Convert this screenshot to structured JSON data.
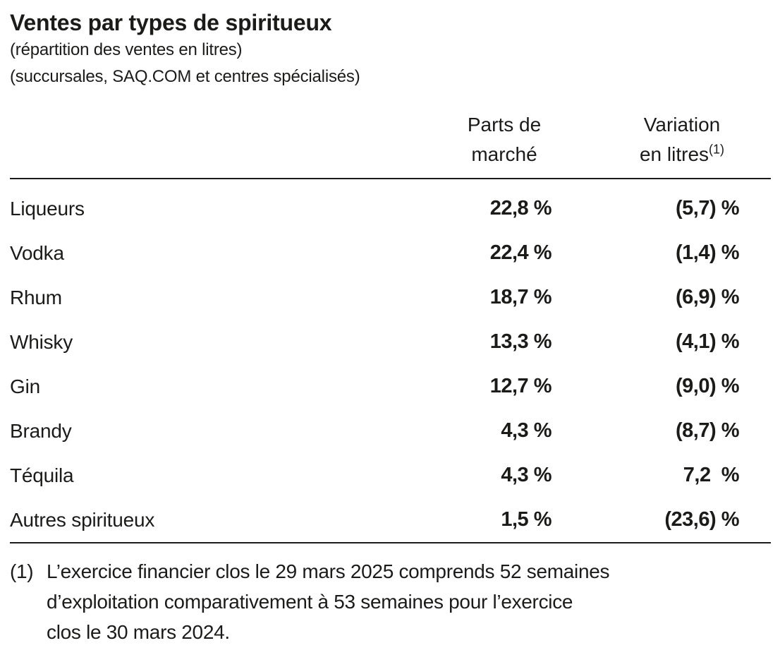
{
  "header": {
    "title": "Ventes par types de spiritueux",
    "subtitle1": "(répartition des ventes en litres)",
    "subtitle2": "(succursales, SAQ.COM et centres spécialisés)"
  },
  "table": {
    "columns": [
      {
        "line1": "Parts de",
        "line2": "marché",
        "sup": ""
      },
      {
        "line1": "Variation",
        "line2": "en litres",
        "sup": "(1)"
      }
    ],
    "rows": [
      {
        "label": "Liqueurs",
        "parts": "22,8 %",
        "variation": "(5,7) %"
      },
      {
        "label": "Vodka",
        "parts": "22,4 %",
        "variation": "(1,4) %"
      },
      {
        "label": "Rhum",
        "parts": "18,7 %",
        "variation": "(6,9) %"
      },
      {
        "label": "Whisky",
        "parts": "13,3 %",
        "variation": "(4,1) %"
      },
      {
        "label": "Gin",
        "parts": "12,7 %",
        "variation": "(9,0) %"
      },
      {
        "label": "Brandy",
        "parts": "4,3 %",
        "variation": "(8,7) %"
      },
      {
        "label": "Téquila",
        "parts": "4,3 %",
        "variation": "7,2  %"
      },
      {
        "label": "Autres spiritueux",
        "parts": "1,5 %",
        "variation": "(23,6) %"
      }
    ]
  },
  "footnote": {
    "marker": "(1)",
    "text": "L’exercice financier clos le 29 mars 2025 comprends 52 semaines\nd’exploitation comparativement à 53 semaines pour l’exercice\nclos le 30 mars 2024."
  },
  "colors": {
    "text": "#1b1b1a",
    "rule": "#1b1b1a",
    "background": "#ffffff"
  }
}
